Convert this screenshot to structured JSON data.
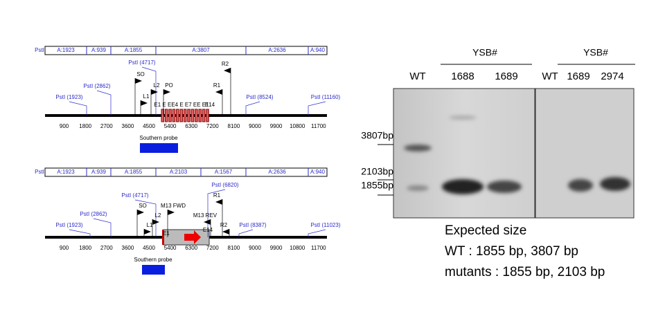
{
  "maps": [
    {
      "fragments_label": "PstI",
      "fragments": [
        "A:1923",
        "A:939",
        "A:1855",
        "A:3807",
        "A:2636",
        "A:940"
      ],
      "sites": [
        "PstI (1923)",
        "PstI (2862)",
        "PstI (4717)",
        "SO",
        "L1",
        "L2",
        "PO",
        "R2",
        "R1",
        "PstI (8524)",
        "PstI (11160)",
        "E1 E EE4 E E7 EE E1",
        "E14"
      ],
      "scale": [
        900,
        1800,
        2700,
        3600,
        4500,
        5400,
        6300,
        7200,
        8100,
        9000,
        9900,
        10800,
        11700
      ],
      "probe": "Southern probe"
    },
    {
      "fragments_label": "PstI",
      "fragments": [
        "A:1923",
        "A:939",
        "A:1855",
        "A:2103",
        "A:1567",
        "A:2636",
        "A:940"
      ],
      "sites": [
        "PstI (1923)",
        "PstI (2862)",
        "PstI (4717)",
        "SO",
        "L1",
        "L2",
        "M13 FWD",
        "E1",
        "PstI (6820)",
        "R1",
        "M13 REV",
        "E14",
        "R2",
        "PstI (8387)",
        "PstI (11023)"
      ],
      "scale": [
        900,
        1800,
        2700,
        3600,
        4500,
        5400,
        6300,
        7200,
        8100,
        9000,
        9900,
        10800,
        11700
      ],
      "probe": "Southern probe"
    }
  ],
  "blot": {
    "group_headers": [
      "YSB#",
      "YSB#"
    ],
    "lanes": [
      "WT",
      "1688",
      "1689",
      "WT",
      "1689",
      "2974"
    ],
    "markers": [
      "3807bp",
      "2103bp",
      "1855bp"
    ],
    "expected": [
      "Expected size",
      "WT : 1855 bp, 3807 bp",
      "mutants : 1855 bp, 2103 bp"
    ]
  }
}
